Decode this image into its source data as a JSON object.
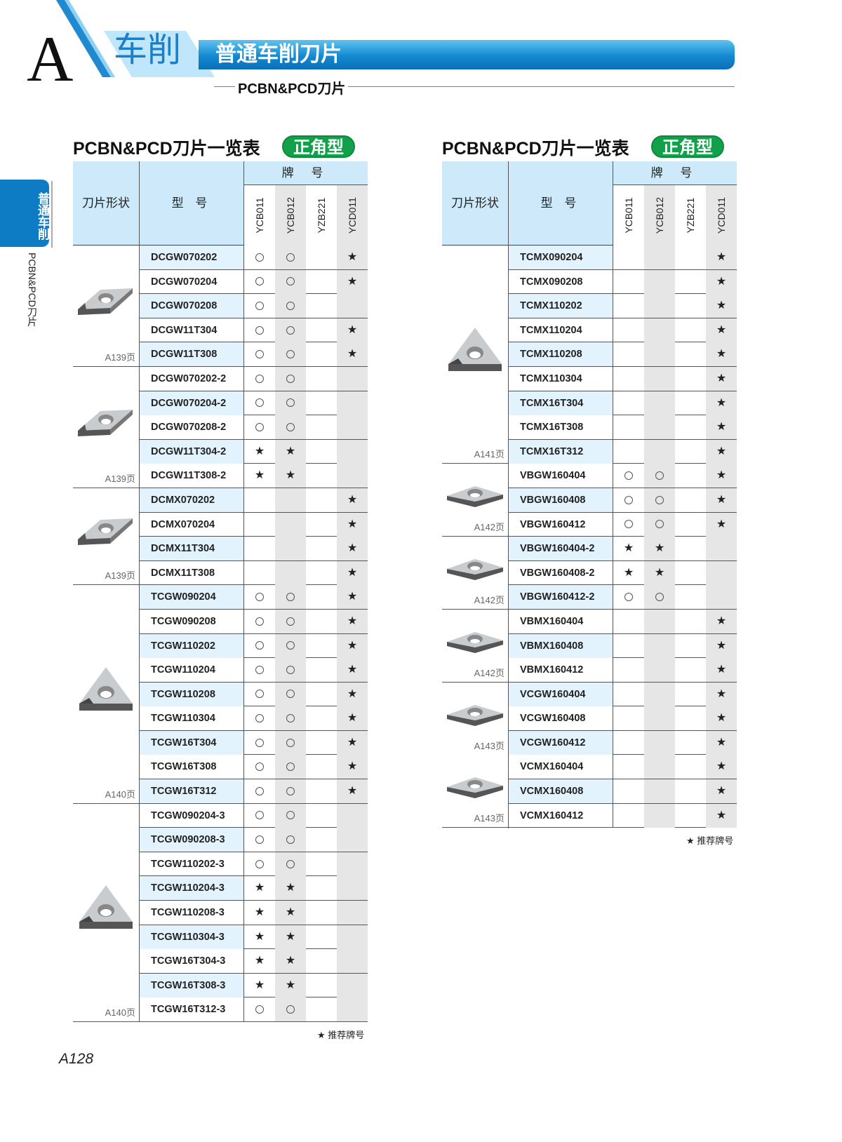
{
  "header": {
    "letter": "A",
    "category": "车削",
    "bar_title": "普通车削刀片",
    "subtitle": "PCBN&PCD刀片"
  },
  "side_tab": {
    "label": "普通车削",
    "sub": "PCBN&PCD刀片"
  },
  "columns": {
    "shape": "刀片形状",
    "model": "型 号",
    "brand": "牌 号",
    "grades": [
      "YCB011",
      "YCB012",
      "YZB221",
      "YCD011"
    ]
  },
  "legend": "★ 推荐牌号",
  "page_number": "A128",
  "tables": [
    {
      "title": "PCBN&PCD刀片一览表",
      "badge": "正角型",
      "groups": [
        {
          "icon": "diamond-insert-icon",
          "page": "A139页",
          "rows": [
            [
              "DCGW070202",
              "o",
              "o",
              "",
              "*"
            ],
            [
              "DCGW070204",
              "o",
              "o",
              "",
              "*"
            ],
            [
              "DCGW070208",
              "o",
              "o",
              "",
              ""
            ],
            [
              "DCGW11T304",
              "o",
              "o",
              "",
              "*"
            ],
            [
              "DCGW11T308",
              "o",
              "o",
              "",
              "*"
            ]
          ]
        },
        {
          "icon": "diamond-insert-icon",
          "page": "A139页",
          "rows": [
            [
              "DCGW070202-2",
              "o",
              "o",
              "",
              ""
            ],
            [
              "DCGW070204-2",
              "o",
              "o",
              "",
              ""
            ],
            [
              "DCGW070208-2",
              "o",
              "o",
              "",
              ""
            ],
            [
              "DCGW11T304-2",
              "*",
              "*",
              "",
              ""
            ],
            [
              "DCGW11T308-2",
              "*",
              "*",
              "",
              ""
            ]
          ]
        },
        {
          "icon": "diamond-insert-icon",
          "page": "A139页",
          "rows": [
            [
              "DCMX070202",
              "",
              "",
              "",
              "*"
            ],
            [
              "DCMX070204",
              "",
              "",
              "",
              "*"
            ],
            [
              "DCMX11T304",
              "",
              "",
              "",
              "*"
            ],
            [
              "DCMX11T308",
              "",
              "",
              "",
              "*"
            ]
          ]
        },
        {
          "icon": "triangle-insert-icon",
          "page": "A140页",
          "rows": [
            [
              "TCGW090204",
              "o",
              "o",
              "",
              "*"
            ],
            [
              "TCGW090208",
              "o",
              "o",
              "",
              "*"
            ],
            [
              "TCGW110202",
              "o",
              "o",
              "",
              "*"
            ],
            [
              "TCGW110204",
              "o",
              "o",
              "",
              "*"
            ],
            [
              "TCGW110208",
              "o",
              "o",
              "",
              "*"
            ],
            [
              "TCGW110304",
              "o",
              "o",
              "",
              "*"
            ],
            [
              "TCGW16T304",
              "o",
              "o",
              "",
              "*"
            ],
            [
              "TCGW16T308",
              "o",
              "o",
              "",
              "*"
            ],
            [
              "TCGW16T312",
              "o",
              "o",
              "",
              "*"
            ]
          ]
        },
        {
          "icon": "triangle-insert-icon",
          "page": "A140页",
          "rows": [
            [
              "TCGW090204-3",
              "o",
              "o",
              "",
              ""
            ],
            [
              "TCGW090208-3",
              "o",
              "o",
              "",
              ""
            ],
            [
              "TCGW110202-3",
              "o",
              "o",
              "",
              ""
            ],
            [
              "TCGW110204-3",
              "*",
              "*",
              "",
              ""
            ],
            [
              "TCGW110208-3",
              "*",
              "*",
              "",
              ""
            ],
            [
              "TCGW110304-3",
              "*",
              "*",
              "",
              ""
            ],
            [
              "TCGW16T304-3",
              "*",
              "*",
              "",
              ""
            ],
            [
              "TCGW16T308-3",
              "*",
              "*",
              "",
              ""
            ],
            [
              "TCGW16T312-3",
              "o",
              "o",
              "",
              ""
            ]
          ]
        }
      ]
    },
    {
      "title": "PCBN&PCD刀片一览表",
      "badge": "正角型",
      "groups": [
        {
          "icon": "triangle-insert-icon",
          "page": "A141页",
          "rows": [
            [
              "TCMX090204",
              "",
              "",
              "",
              "*"
            ],
            [
              "TCMX090208",
              "",
              "",
              "",
              "*"
            ],
            [
              "TCMX110202",
              "",
              "",
              "",
              "*"
            ],
            [
              "TCMX110204",
              "",
              "",
              "",
              "*"
            ],
            [
              "TCMX110208",
              "",
              "",
              "",
              "*"
            ],
            [
              "TCMX110304",
              "",
              "",
              "",
              "*"
            ],
            [
              "TCMX16T304",
              "",
              "",
              "",
              "*"
            ],
            [
              "TCMX16T308",
              "",
              "",
              "",
              "*"
            ],
            [
              "TCMX16T312",
              "",
              "",
              "",
              "*"
            ]
          ]
        },
        {
          "icon": "v-diamond-insert-icon",
          "page": "A142页",
          "rows": [
            [
              "VBGW160404",
              "o",
              "o",
              "",
              "*"
            ],
            [
              "VBGW160408",
              "o",
              "o",
              "",
              "*"
            ],
            [
              "VBGW160412",
              "o",
              "o",
              "",
              "*"
            ]
          ]
        },
        {
          "icon": "v-diamond-insert-icon",
          "page": "A142页",
          "rows": [
            [
              "VBGW160404-2",
              "*",
              "*",
              "",
              ""
            ],
            [
              "VBGW160408-2",
              "*",
              "*",
              "",
              ""
            ],
            [
              "VBGW160412-2",
              "o",
              "o",
              "",
              ""
            ]
          ]
        },
        {
          "icon": "v-diamond-insert-icon",
          "page": "A142页",
          "rows": [
            [
              "VBMX160404",
              "",
              "",
              "",
              "*"
            ],
            [
              "VBMX160408",
              "",
              "",
              "",
              "*"
            ],
            [
              "VBMX160412",
              "",
              "",
              "",
              "*"
            ]
          ]
        },
        {
          "icon": "v-diamond-insert-icon",
          "page": "A143页",
          "rows": [
            [
              "VCGW160404",
              "",
              "",
              "",
              "*"
            ],
            [
              "VCGW160408",
              "",
              "",
              "",
              "*"
            ],
            [
              "VCGW160412",
              "",
              "",
              "",
              "*"
            ]
          ]
        },
        {
          "icon": "v-diamond-insert-icon",
          "page": "A143页",
          "rows": [
            [
              "VCMX160404",
              "",
              "",
              "",
              "*"
            ],
            [
              "VCMX160408",
              "",
              "",
              "",
              "*"
            ],
            [
              "VCMX160412",
              "",
              "",
              "",
              "*"
            ]
          ]
        }
      ]
    }
  ]
}
